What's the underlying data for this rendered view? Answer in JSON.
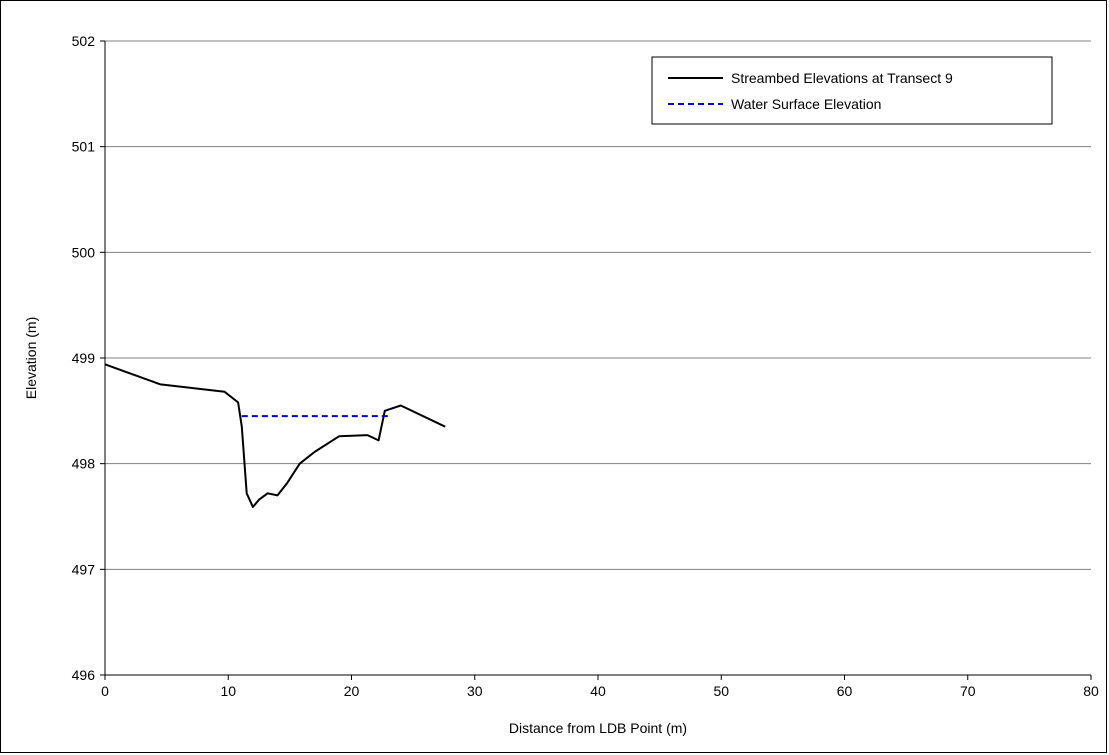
{
  "chart_data": {
    "type": "line",
    "title": "",
    "xlabel": "Distance from LDB Point (m)",
    "ylabel": "Elevation  (m)",
    "xlim": [
      0,
      80
    ],
    "ylim": [
      496,
      502
    ],
    "x_ticks": [
      0,
      10,
      20,
      30,
      40,
      50,
      60,
      70,
      80
    ],
    "y_ticks": [
      496,
      497,
      498,
      499,
      500,
      501,
      502
    ],
    "grid": "horizontal",
    "legend_position": "top-right",
    "series": [
      {
        "name": "Streambed Elevations at Transect 9",
        "color": "#000000",
        "dash": "solid",
        "points": [
          [
            0,
            498.94
          ],
          [
            4.5,
            498.75
          ],
          [
            9.7,
            498.68
          ],
          [
            10.8,
            498.58
          ],
          [
            11.1,
            498.35
          ],
          [
            11.5,
            497.72
          ],
          [
            12.0,
            497.59
          ],
          [
            12.5,
            497.66
          ],
          [
            13.2,
            497.72
          ],
          [
            14.0,
            497.7
          ],
          [
            14.8,
            497.82
          ],
          [
            15.8,
            498.0
          ],
          [
            17.0,
            498.11
          ],
          [
            19.0,
            498.26
          ],
          [
            21.3,
            498.27
          ],
          [
            22.2,
            498.22
          ],
          [
            22.7,
            498.5
          ],
          [
            24.0,
            498.55
          ],
          [
            27.6,
            498.35
          ]
        ]
      },
      {
        "name": "Water Surface Elevation",
        "color": "#0000cc",
        "dash": "dashed",
        "points": [
          [
            11.1,
            498.45
          ],
          [
            23.0,
            498.45
          ]
        ]
      }
    ]
  }
}
